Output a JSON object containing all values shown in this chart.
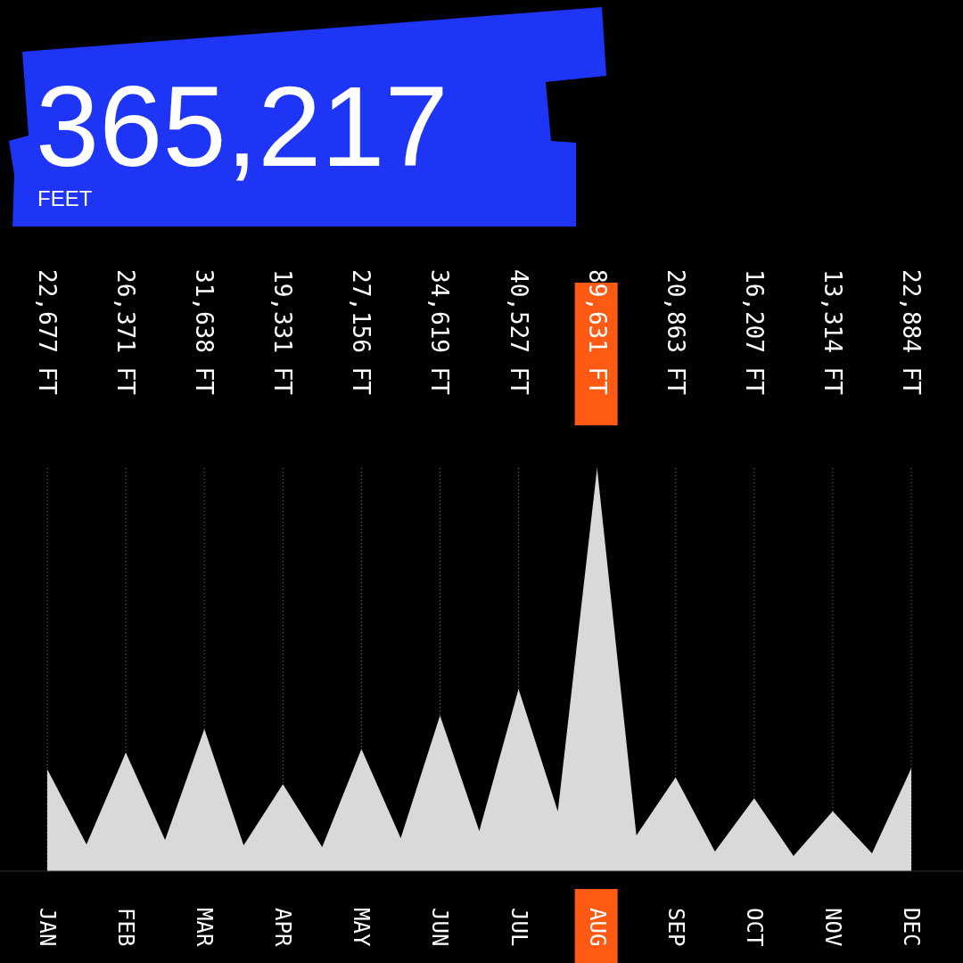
{
  "chart_data": {
    "type": "area",
    "title": "365,217",
    "subtitle": "FEET",
    "categories": [
      "JAN",
      null,
      "FEB",
      null,
      "MAR",
      null,
      "APR",
      null,
      "MAY",
      null,
      "JUN",
      null,
      "JUL",
      null,
      "AUG",
      null,
      "SEP",
      null,
      "OCT",
      null,
      "NOV",
      null,
      "DEC"
    ],
    "values": [
      22677,
      5950,
      26371,
      6940,
      31638,
      5750,
      19331,
      5350,
      27156,
      7340,
      34619,
      8920,
      40527,
      13290,
      89631,
      7930,
      20863,
      4360,
      16207,
      3370,
      13314,
      3970,
      22884
    ],
    "value_labels": [
      "22,677 FT",
      null,
      "26,371 FT",
      null,
      "31,638 FT",
      null,
      "19,331 FT",
      null,
      "27,156 FT",
      null,
      "34,619 FT",
      null,
      "40,527 FT",
      null,
      "89,631 FT",
      null,
      "20,863 FT",
      null,
      "16,207 FT",
      null,
      "13,314 FT",
      null,
      "22,884 FT"
    ],
    "color": "#d9d9d9",
    "grid": "x"
  }
}
